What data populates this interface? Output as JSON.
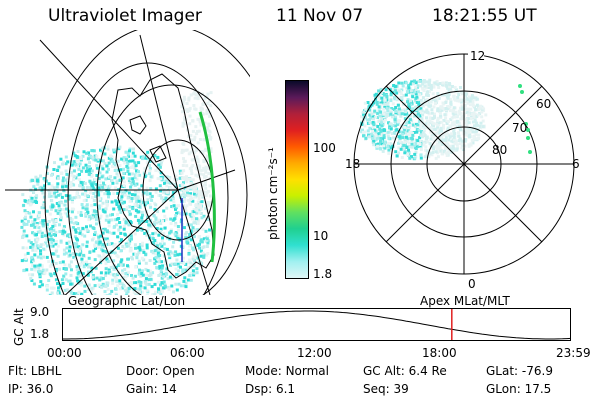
{
  "header": {
    "instrument": "Ultraviolet Imager",
    "date": "11 Nov 07",
    "time": "18:21:55 UT"
  },
  "colorbar": {
    "label": "photon cm⁻²s⁻¹",
    "ticks": [
      "100",
      "10",
      "1.8"
    ],
    "colors": [
      "#0a0a2a",
      "#5a1a5a",
      "#b0203a",
      "#e02020",
      "#ff5a00",
      "#ffaa00",
      "#ffe000",
      "#c8f000",
      "#60e060",
      "#20d090",
      "#30e0d0",
      "#a0f0f0",
      "#e0f6f6"
    ]
  },
  "polar_plot": {
    "mlt_labels": {
      "top": "12",
      "left": "18",
      "right": "6",
      "bottom": "0"
    },
    "lat_labels": [
      "60",
      "70",
      "80"
    ]
  },
  "left_map": {
    "label": "Geographic Lat/Lon"
  },
  "right_map": {
    "label": "Apex MLat/MLT"
  },
  "altitude_plot": {
    "ylabel": "GC Alt",
    "yticks": [
      "9.0",
      "1.8"
    ],
    "xticks": [
      "00:00",
      "06:00",
      "12:00",
      "18:00",
      "23:59"
    ],
    "marker_time_hours": 18.37
  },
  "info": {
    "flt_label": "Flt:",
    "flt_value": "LBHL",
    "ip_label": "IP:",
    "ip_value": "36.0",
    "door_label": "Door:",
    "door_value": "Open",
    "gain_label": "Gain:",
    "gain_value": "14",
    "mode_label": "Mode:",
    "mode_value": "Normal",
    "dsp_label": "Dsp:",
    "dsp_value": "6.1",
    "gcalt_label": "GC Alt:",
    "gcalt_value": "6.4 Re",
    "seq_label": "Seq:",
    "seq_value": "39",
    "glat_label": "GLat:",
    "glat_value": "-76.9",
    "glon_label": "GLon:",
    "glon_value": "17.5"
  }
}
